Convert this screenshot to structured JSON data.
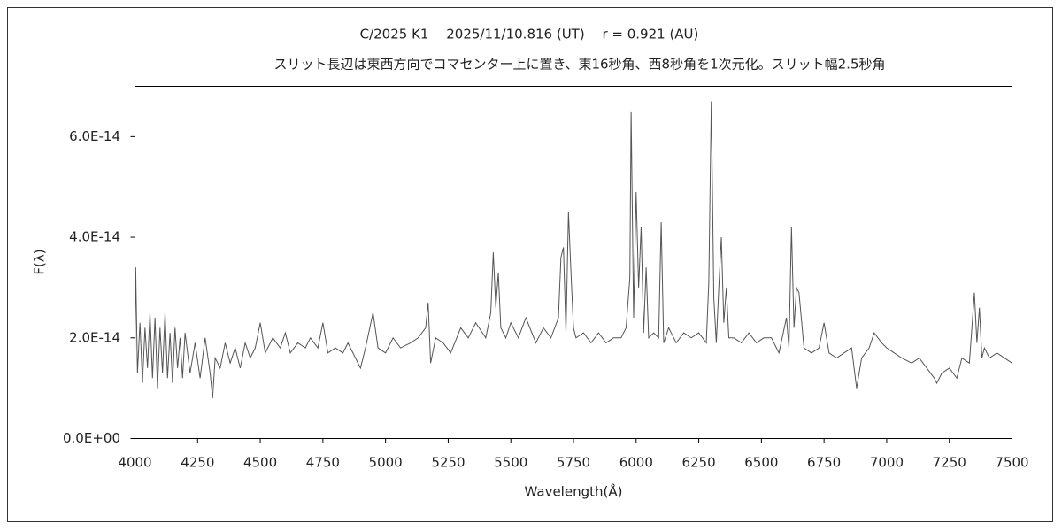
{
  "chart_data": {
    "type": "line",
    "title": "C/2025 K1　 2025/11/10.816 (UT)　 r = 0.921 (AU)",
    "subtitle": "スリット長辺は東西方向でコマセンター上に置き、東16秒角、西8秒角を1次元化。スリット幅2.5秒角",
    "x_label": "Wavelength(Å)",
    "y_label": "F(λ)",
    "xlim": [
      4000,
      7500
    ],
    "xticks": [
      4000,
      4250,
      4500,
      4750,
      5000,
      5250,
      5500,
      5750,
      6000,
      6250,
      6500,
      6750,
      7000,
      7250,
      7500
    ],
    "ylim": [
      0,
      7e-14
    ],
    "yticks": [
      {
        "value": 0,
        "label": "0.0E+00"
      },
      {
        "value": 2e-14,
        "label": "2.0E-14"
      },
      {
        "value": 4e-14,
        "label": "4.0E-14"
      },
      {
        "value": 6e-14,
        "label": "6.0E-14"
      }
    ],
    "grid": false,
    "series": [
      {
        "color": "#555555",
        "x": [
          4000,
          4003,
          4010,
          4020,
          4030,
          4040,
          4050,
          4060,
          4070,
          4080,
          4090,
          4100,
          4110,
          4120,
          4130,
          4140,
          4150,
          4160,
          4170,
          4180,
          4190,
          4200,
          4220,
          4240,
          4260,
          4280,
          4300,
          4310,
          4320,
          4340,
          4360,
          4380,
          4400,
          4420,
          4440,
          4460,
          4480,
          4500,
          4520,
          4550,
          4580,
          4600,
          4620,
          4650,
          4680,
          4700,
          4730,
          4750,
          4770,
          4800,
          4830,
          4850,
          4880,
          4900,
          4920,
          4950,
          4970,
          5000,
          5030,
          5060,
          5100,
          5130,
          5160,
          5170,
          5180,
          5200,
          5230,
          5260,
          5300,
          5330,
          5360,
          5400,
          5420,
          5430,
          5440,
          5450,
          5460,
          5480,
          5500,
          5530,
          5560,
          5600,
          5630,
          5660,
          5690,
          5700,
          5710,
          5720,
          5730,
          5740,
          5750,
          5760,
          5790,
          5820,
          5850,
          5880,
          5910,
          5940,
          5960,
          5975,
          5980,
          5990,
          6000,
          6010,
          6020,
          6030,
          6040,
          6050,
          6070,
          6090,
          6100,
          6110,
          6130,
          6160,
          6190,
          6220,
          6250,
          6280,
          6290,
          6300,
          6310,
          6320,
          6330,
          6340,
          6350,
          6360,
          6370,
          6390,
          6420,
          6450,
          6480,
          6510,
          6540,
          6570,
          6600,
          6610,
          6620,
          6630,
          6640,
          6650,
          6670,
          6700,
          6730,
          6750,
          6770,
          6800,
          6830,
          6860,
          6880,
          6900,
          6930,
          6950,
          6980,
          7000,
          7030,
          7060,
          7100,
          7130,
          7160,
          7190,
          7200,
          7220,
          7250,
          7280,
          7300,
          7330,
          7350,
          7360,
          7370,
          7380,
          7390,
          7410,
          7440,
          7470,
          7500
        ],
        "values": [
          1.7e-14,
          3.4e-14,
          1.3e-14,
          2.3e-14,
          1.1e-14,
          2.2e-14,
          1.4e-14,
          2.5e-14,
          1.2e-14,
          2.4e-14,
          1e-14,
          2.2e-14,
          1.3e-14,
          2.5e-14,
          1.2e-14,
          2.1e-14,
          1.1e-14,
          2.2e-14,
          1.4e-14,
          2e-14,
          1.2e-14,
          2.1e-14,
          1.3e-14,
          1.9e-14,
          1.2e-14,
          2e-14,
          1.3e-14,
          8e-15,
          1.6e-14,
          1.4e-14,
          1.9e-14,
          1.5e-14,
          1.8e-14,
          1.4e-14,
          1.9e-14,
          1.6e-14,
          1.8e-14,
          2.3e-14,
          1.7e-14,
          2e-14,
          1.8e-14,
          2.1e-14,
          1.7e-14,
          1.9e-14,
          1.8e-14,
          2e-14,
          1.8e-14,
          2.3e-14,
          1.7e-14,
          1.8e-14,
          1.7e-14,
          1.9e-14,
          1.6e-14,
          1.4e-14,
          1.8e-14,
          2.5e-14,
          1.8e-14,
          1.7e-14,
          2e-14,
          1.8e-14,
          1.9e-14,
          2e-14,
          2.2e-14,
          2.7e-14,
          1.5e-14,
          2e-14,
          1.9e-14,
          1.7e-14,
          2.2e-14,
          2e-14,
          2.3e-14,
          2e-14,
          2.5e-14,
          3.7e-14,
          2.6e-14,
          3.3e-14,
          2.2e-14,
          2e-14,
          2.3e-14,
          2e-14,
          2.4e-14,
          1.9e-14,
          2.2e-14,
          2e-14,
          2.4e-14,
          3.6e-14,
          3.8e-14,
          2.1e-14,
          4.5e-14,
          3.3e-14,
          2.2e-14,
          2e-14,
          2.1e-14,
          1.9e-14,
          2.1e-14,
          1.9e-14,
          2e-14,
          2e-14,
          2.2e-14,
          3.2e-14,
          6.5e-14,
          2.4e-14,
          4.9e-14,
          3e-14,
          4.2e-14,
          2.1e-14,
          3.4e-14,
          2e-14,
          2.1e-14,
          2e-14,
          4.3e-14,
          1.9e-14,
          2.2e-14,
          1.9e-14,
          2.1e-14,
          2e-14,
          2.1e-14,
          1.9e-14,
          3.1e-14,
          6.7e-14,
          2.8e-14,
          1.9e-14,
          3e-14,
          4e-14,
          2.3e-14,
          3e-14,
          2e-14,
          2e-14,
          1.9e-14,
          2.1e-14,
          1.9e-14,
          2e-14,
          2e-14,
          1.7e-14,
          2.4e-14,
          1.8e-14,
          4.2e-14,
          2.2e-14,
          3e-14,
          2.9e-14,
          1.8e-14,
          1.7e-14,
          1.8e-14,
          2.3e-14,
          1.7e-14,
          1.6e-14,
          1.7e-14,
          1.8e-14,
          1e-14,
          1.6e-14,
          1.8e-14,
          2.1e-14,
          1.9e-14,
          1.8e-14,
          1.7e-14,
          1.6e-14,
          1.5e-14,
          1.6e-14,
          1.4e-14,
          1.2e-14,
          1.1e-14,
          1.3e-14,
          1.4e-14,
          1.2e-14,
          1.6e-14,
          1.5e-14,
          2.9e-14,
          1.9e-14,
          2.6e-14,
          1.6e-14,
          1.8e-14,
          1.6e-14,
          1.7e-14,
          1.6e-14,
          1.5e-14
        ]
      }
    ]
  }
}
